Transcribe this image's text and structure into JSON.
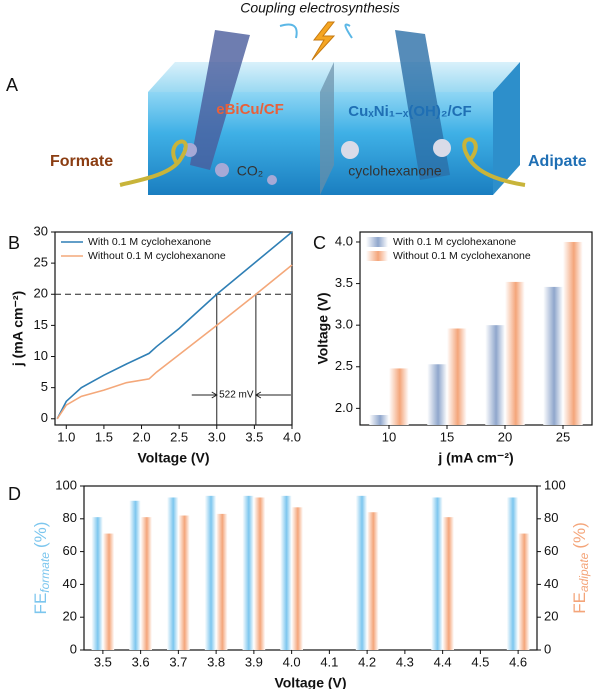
{
  "illustration": {
    "panel_label": "A",
    "title": "Coupling electrosynthesis",
    "left_electrode": "eBiCu/CF",
    "right_electrode": "CuₓNi₁₋ₓ(OH)₂/CF",
    "left_product": "Formate",
    "right_product": "Adipate",
    "left_reactant": "CO₂",
    "right_reactant": "cyclohexanone"
  },
  "chart_data": [
    {
      "type": "line",
      "panel_label": "B",
      "xlabel": "Voltage (V)",
      "ylabel": "j (mA cm⁻²)",
      "x": [
        0.88,
        1.0,
        1.2,
        1.5,
        1.8,
        2.1,
        2.2,
        2.5,
        3.0,
        3.5,
        4.0
      ],
      "series": [
        {
          "name": "With 0.1 M cyclohexanone",
          "color": "#2f7fb5",
          "values": [
            0,
            2.8,
            5,
            7,
            8.8,
            10.5,
            11.6,
            14.5,
            20,
            25,
            30
          ]
        },
        {
          "name": "Without 0.1 M cyclohexanone",
          "color": "#f4a87a",
          "values": [
            0,
            2.2,
            3.6,
            4.6,
            5.8,
            6.4,
            7.5,
            10.3,
            15,
            19.8,
            24.7
          ]
        }
      ],
      "xlim": [
        0.85,
        4.0
      ],
      "ylim": [
        -1,
        30
      ],
      "xticks": [
        {
          "value": 1,
          "label": "1.0"
        },
        1.5,
        {
          "value": 2,
          "label": "2.0"
        },
        2.5,
        {
          "value": 3,
          "label": "3.0"
        },
        3.5,
        {
          "value": 4,
          "label": "4.0"
        }
      ],
      "yticks": [
        0,
        5,
        10,
        15,
        20,
        25,
        30
      ],
      "legend": "upper left",
      "hline": 20,
      "vlines": [
        3.0,
        3.52
      ],
      "annotation": "522 mV"
    },
    {
      "type": "bar",
      "panel_label": "C",
      "xlabel": "j (mA cm⁻²)",
      "ylabel": "Voltage (V)",
      "categories": [
        "10",
        "15",
        "20",
        "25"
      ],
      "series": [
        {
          "name": "With 0.1 M cyclohexanone",
          "color": "#8fa6cc",
          "values": [
            1.92,
            2.53,
            3.0,
            3.46
          ]
        },
        {
          "name": "Without 0.1 M cyclohexanone",
          "color": "#f4a57a",
          "values": [
            2.48,
            2.96,
            3.52,
            4.0
          ]
        }
      ],
      "ylim": [
        1.8,
        4.12
      ],
      "yticks": [
        {
          "value": 2,
          "label": "2.0"
        },
        2.5,
        {
          "value": 3,
          "label": "3.0"
        },
        3.5,
        {
          "value": 4,
          "label": "4.0"
        }
      ],
      "legend": "upper left"
    },
    {
      "type": "bar",
      "panel_label": "D",
      "xlabel": "Voltage (V)",
      "ylabel": {
        "main": "FE",
        "sub": "formate",
        "unit": "(%)"
      },
      "y2label": {
        "main": "FE",
        "sub": "adipate",
        "unit": "(%)"
      },
      "categories": [
        "3.5",
        "3.6",
        "3.7",
        "3.8",
        "3.9",
        "4.0",
        "4.1",
        "4.2",
        "4.3",
        "4.4",
        "4.5",
        "4.6"
      ],
      "series": [
        {
          "color": "#7cc6ee",
          "values": [
            81,
            91,
            93,
            94,
            94,
            94,
            null,
            94,
            null,
            93,
            null,
            93
          ]
        },
        {
          "color": "#f4a57a",
          "axis": "y2",
          "values": [
            71,
            81,
            82,
            83,
            93,
            87,
            null,
            84,
            null,
            81,
            null,
            71
          ]
        }
      ],
      "ylim": [
        0,
        100
      ],
      "yticks": [
        0,
        20,
        40,
        60,
        80,
        100
      ],
      "y2lim": [
        0,
        100
      ],
      "y2ticks": [
        0,
        20,
        40,
        60,
        80,
        100
      ]
    }
  ]
}
